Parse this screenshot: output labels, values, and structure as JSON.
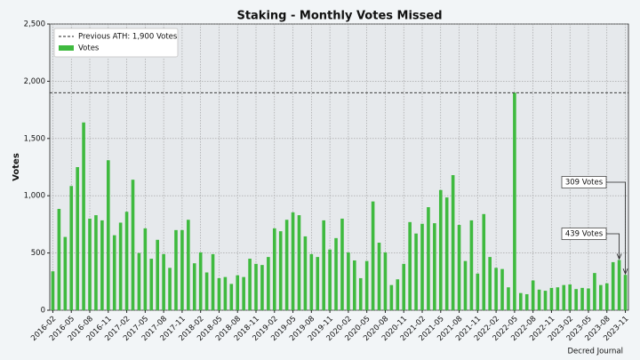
{
  "chart_data": {
    "type": "bar",
    "title": "Staking - Monthly Votes Missed",
    "ylabel": "Votes",
    "source": "Decred Journal",
    "categories": [
      "2016-02",
      null,
      null,
      "2016-05",
      null,
      null,
      "2016-08",
      null,
      null,
      "2016-11",
      null,
      null,
      "2017-02",
      null,
      null,
      "2017-05",
      null,
      null,
      "2017-08",
      null,
      null,
      "2017-11",
      null,
      null,
      "2018-02",
      null,
      null,
      "2018-05",
      null,
      null,
      "2018-08",
      null,
      null,
      "2018-11",
      null,
      null,
      "2019-02",
      null,
      null,
      "2019-05",
      null,
      null,
      "2019-08",
      null,
      null,
      "2019-11",
      null,
      null,
      "2020-02",
      null,
      null,
      "2020-05",
      null,
      null,
      "2020-08",
      null,
      null,
      "2020-11",
      null,
      null,
      "2021-02",
      null,
      null,
      "2021-05",
      null,
      null,
      "2021-08",
      null,
      null,
      "2021-11",
      null,
      null,
      "2022-02",
      null,
      null,
      "2022-05",
      null,
      null,
      "2022-08",
      null,
      null,
      "2022-11",
      null,
      null,
      "2023-02",
      null,
      null,
      "2023-05",
      null,
      null,
      "2023-08",
      null,
      null,
      "2023-11"
    ],
    "series": [
      {
        "name": "Votes",
        "color": "#3fba3f",
        "values": [
          340,
          885,
          640,
          1085,
          1250,
          1640,
          800,
          830,
          785,
          1310,
          655,
          765,
          860,
          1140,
          500,
          715,
          450,
          615,
          490,
          370,
          700,
          700,
          790,
          410,
          505,
          330,
          490,
          280,
          290,
          230,
          305,
          290,
          450,
          405,
          395,
          465,
          715,
          690,
          790,
          855,
          830,
          645,
          490,
          465,
          785,
          530,
          630,
          800,
          505,
          435,
          280,
          430,
          950,
          590,
          505,
          220,
          270,
          405,
          770,
          670,
          755,
          900,
          760,
          1050,
          985,
          1180,
          745,
          430,
          785,
          320,
          840,
          465,
          370,
          360,
          200,
          1900,
          150,
          140,
          260,
          180,
          170,
          195,
          200,
          220,
          225,
          185,
          195,
          190,
          325,
          220,
          235,
          420,
          439,
          309
        ],
        "value_labels": [
          null,
          null,
          null,
          null,
          null,
          null,
          null,
          null,
          null,
          null,
          null,
          null,
          null,
          null,
          null,
          null,
          null,
          null,
          null,
          null,
          null,
          null,
          null,
          null,
          null,
          null,
          null,
          null,
          null,
          null,
          null,
          null,
          null,
          null,
          null,
          null,
          null,
          null,
          null,
          null,
          null,
          null,
          null,
          null,
          null,
          null,
          null,
          null,
          null,
          null,
          null,
          null,
          null,
          null,
          null,
          null,
          null,
          null,
          null,
          null,
          null,
          null,
          null,
          null,
          null,
          null,
          null,
          null,
          null,
          null,
          null,
          null,
          null,
          null,
          null,
          null,
          null,
          null,
          null,
          null,
          null,
          null,
          null,
          null,
          null,
          null,
          null,
          null,
          null,
          null,
          null,
          null,
          "439 Votes",
          "309 Votes"
        ]
      }
    ],
    "reference_lines": [
      {
        "name": "Previous ATH: 1,900 Votes",
        "value": 1900,
        "color": "#222"
      }
    ],
    "ylim": [
      0,
      2500
    ],
    "yticks": [
      0,
      500,
      {
        "value": 1000,
        "label": "1,000"
      },
      {
        "value": 1500,
        "label": "1,500"
      },
      {
        "value": 2000,
        "label": "2,000"
      },
      {
        "value": 2500,
        "label": "2,500"
      }
    ],
    "grid": true,
    "legend": "upper left"
  }
}
